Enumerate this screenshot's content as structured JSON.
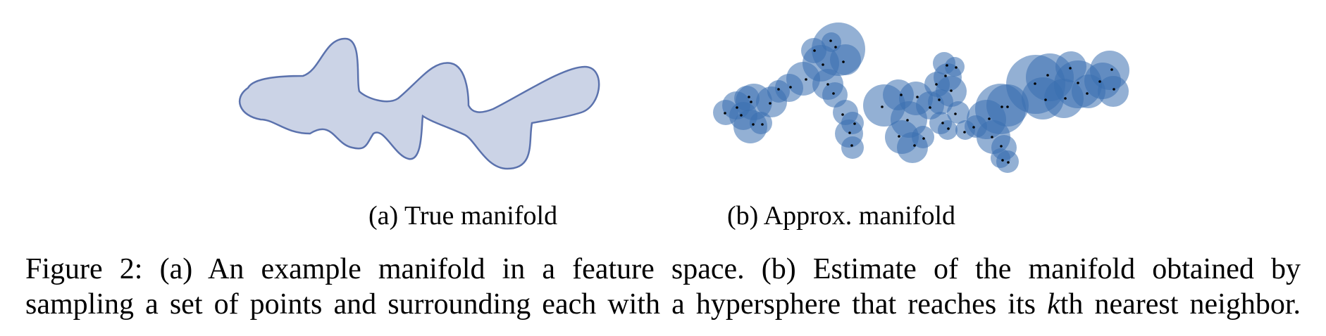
{
  "figure": {
    "subcaption_a": "(a) True manifold",
    "subcaption_b": "(b) Approx. manifold",
    "caption_line1": "Figure 2: (a) An example manifold in a feature space. (b) Estimate of the manifold obtained by",
    "caption_line2_pre": "sampling a set of points and surrounding each with a hypersphere that reaches its ",
    "caption_line2_k": "k",
    "caption_line2_post": "th nearest neighbor."
  },
  "colors": {
    "manifold_fill": "#cbd3e6",
    "manifold_stroke": "#5b72ad",
    "sphere_fill": "#3a6fb0",
    "point": "#000000"
  }
}
